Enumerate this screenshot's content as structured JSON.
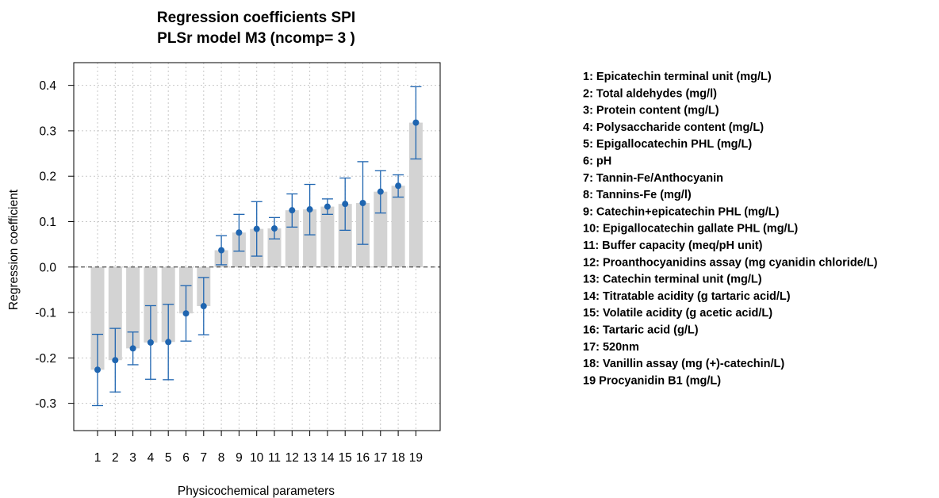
{
  "chart_data": {
    "type": "bar",
    "title": "Regression coefficients SPI",
    "subtitle": "PLSr model M3 (ncomp= 3 )",
    "xlabel": "Physicochemical parameters",
    "ylabel": "Regression coefficient",
    "ylim": [
      -0.36,
      0.45
    ],
    "yticks": [
      -0.3,
      -0.2,
      -0.1,
      0.0,
      0.1,
      0.2,
      0.3,
      0.4
    ],
    "ytick_labels": [
      "-0.3",
      "-0.2",
      "-0.1",
      "0.0",
      "0.1",
      "0.2",
      "0.3",
      "0.4"
    ],
    "categories": [
      "1",
      "2",
      "3",
      "4",
      "5",
      "6",
      "7",
      "8",
      "9",
      "10",
      "11",
      "12",
      "13",
      "14",
      "15",
      "16",
      "17",
      "18",
      "19"
    ],
    "values": [
      -0.226,
      -0.205,
      -0.179,
      -0.166,
      -0.165,
      -0.102,
      -0.086,
      0.037,
      0.076,
      0.084,
      0.085,
      0.125,
      0.127,
      0.133,
      0.139,
      0.141,
      0.166,
      0.179,
      0.318
    ],
    "points": [
      -0.226,
      -0.205,
      -0.179,
      -0.166,
      -0.165,
      -0.102,
      -0.086,
      0.037,
      0.076,
      0.084,
      0.085,
      0.125,
      0.127,
      0.133,
      0.139,
      0.141,
      0.166,
      0.179,
      0.318
    ],
    "error_low": [
      -0.305,
      -0.275,
      -0.215,
      -0.247,
      -0.248,
      -0.163,
      -0.149,
      0.005,
      0.035,
      0.024,
      0.062,
      0.088,
      0.071,
      0.116,
      0.081,
      0.05,
      0.119,
      0.154,
      0.238
    ],
    "error_high": [
      -0.148,
      -0.135,
      -0.143,
      -0.085,
      -0.082,
      -0.041,
      -0.023,
      0.069,
      0.116,
      0.144,
      0.109,
      0.161,
      0.182,
      0.15,
      0.196,
      0.232,
      0.212,
      0.203,
      0.397
    ],
    "reference_line": 0.0,
    "grid": true,
    "legend_position": "right",
    "legend": [
      "1: Epicatechin terminal unit (mg/L)",
      "2: Total aldehydes (mg/l)",
      "3: Protein content (mg/L)",
      "4: Polysaccharide content (mg/L)",
      "5: Epigallocatechin PHL (mg/L)",
      "6: pH",
      "7: Tannin-Fe/Anthocyanin",
      "8: Tannins-Fe (mg/l)",
      "9: Catechin+epicatechin PHL (mg/L)",
      "10: Epigallocatechin gallate PHL (mg/L)",
      "11: Buffer capacity (meq/pH unit)",
      "12: Proanthocyanidins assay (mg cyanidin chloride/L)",
      "13: Catechin terminal unit (mg/L)",
      "14: Titratable acidity (g tartaric acid/L)",
      "15: Volatile acidity (g acetic acid/L)",
      "16: Tartaric acid (g/L)",
      "17: 520nm",
      "18: Vanillin assay (mg (+)-catechin/L)",
      "19 Procyanidin B1 (mg/L)"
    ],
    "colors": {
      "bar": "#d3d3d3",
      "point": "#1f65b0",
      "error": "#1f65b0",
      "grid": "#c8c8c8"
    }
  }
}
